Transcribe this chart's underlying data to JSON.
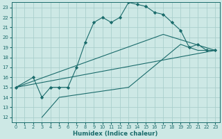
{
  "xlabel": "Humidex (Indice chaleur)",
  "ylabel": "",
  "bg_color": "#cde8e5",
  "grid_color": "#aacfcc",
  "line_color": "#1a6b6b",
  "xlim": [
    -0.5,
    23.5
  ],
  "ylim": [
    11.5,
    23.5
  ],
  "xticks": [
    0,
    1,
    2,
    3,
    4,
    5,
    6,
    7,
    8,
    9,
    10,
    11,
    12,
    13,
    14,
    15,
    16,
    17,
    18,
    19,
    20,
    21,
    22,
    23
  ],
  "yticks": [
    12,
    13,
    14,
    15,
    16,
    17,
    18,
    19,
    20,
    21,
    22,
    23
  ],
  "lines": [
    {
      "x": [
        0,
        2,
        3,
        4,
        5,
        6,
        7,
        8,
        9,
        10,
        11,
        12,
        13,
        14,
        15,
        16,
        17,
        18,
        19,
        20,
        21,
        22,
        23
      ],
      "y": [
        15,
        16,
        14,
        15,
        15,
        15,
        17,
        19.5,
        21.5,
        22,
        21.5,
        22,
        23.5,
        23.3,
        23.1,
        22.5,
        22.3,
        21.5,
        20.7,
        19.0,
        19.3,
        18.7,
        18.7
      ],
      "has_markers": true
    },
    {
      "x": [
        3,
        5,
        13,
        19,
        20,
        21,
        22,
        23
      ],
      "y": [
        12,
        14,
        15,
        19.3,
        19.0,
        18.7,
        18.7,
        18.7
      ],
      "has_markers": false
    },
    {
      "x": [
        0,
        23
      ],
      "y": [
        15,
        18.7
      ],
      "has_markers": false
    },
    {
      "x": [
        0,
        17,
        23
      ],
      "y": [
        15,
        20.3,
        18.7
      ],
      "has_markers": false
    }
  ]
}
